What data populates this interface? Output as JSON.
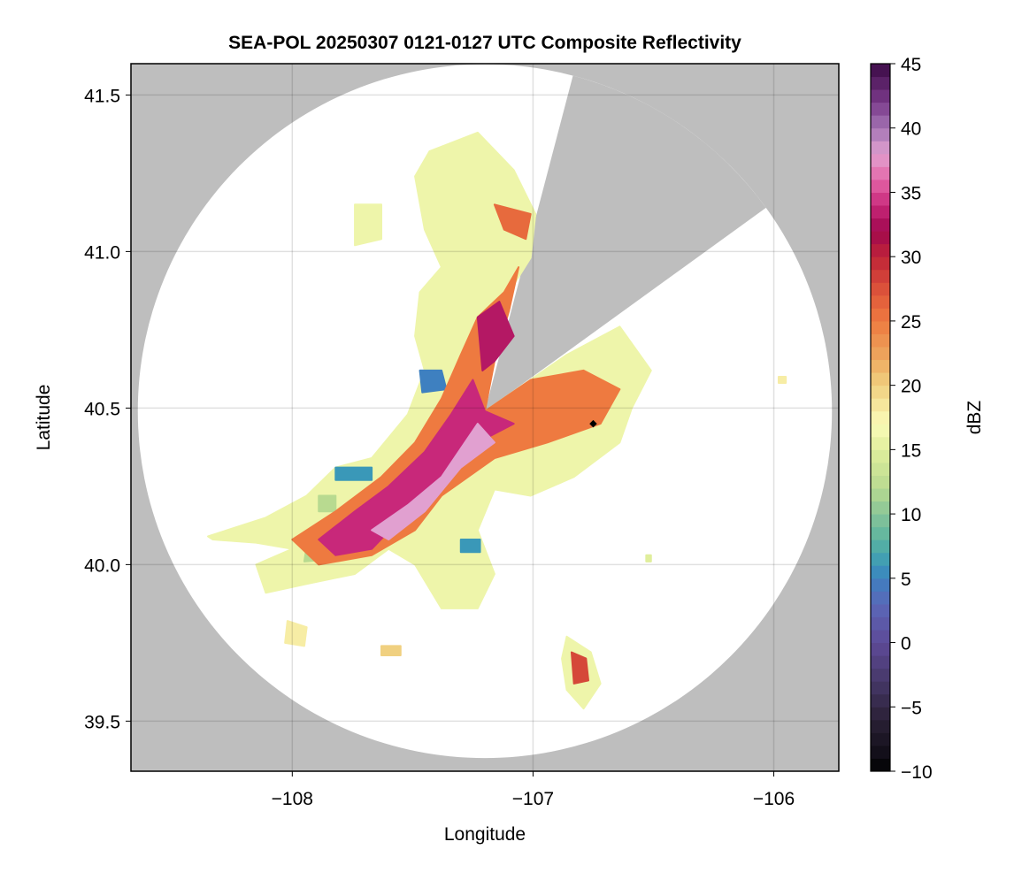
{
  "chart_data": {
    "type": "heatmap",
    "title": "SEA-POL 20250307 0121-0127 UTC Composite Reflectivity",
    "xlabel": "Longitude",
    "ylabel": "Latitude",
    "xlim": [
      -108.67,
      -105.73
    ],
    "ylim": [
      39.34,
      41.6
    ],
    "xticks": [
      -108,
      -107,
      -106
    ],
    "xtick_labels": [
      "−108",
      "−107",
      "−106"
    ],
    "yticks": [
      39.5,
      40.0,
      40.5,
      41.0,
      41.5
    ],
    "ytick_labels": [
      "39.5",
      "40.0",
      "40.5",
      "41.0",
      "41.5"
    ],
    "grid": true,
    "colorbar": {
      "label": "dBZ",
      "range": [
        -10,
        45
      ],
      "ticks": [
        -10,
        -5,
        0,
        5,
        10,
        15,
        20,
        25,
        30,
        35,
        40,
        45
      ],
      "tick_labels": [
        "−10",
        "−5",
        "0",
        "5",
        "10",
        "15",
        "20",
        "25",
        "30",
        "35",
        "40",
        "45"
      ],
      "colormap_anchors": [
        [
          -10,
          "#000000"
        ],
        [
          -9,
          "#0e0c14"
        ],
        [
          -6,
          "#2a2036"
        ],
        [
          -3,
          "#463868"
        ],
        [
          0,
          "#5e4a98"
        ],
        [
          3,
          "#5a68b8"
        ],
        [
          5,
          "#3e80c0"
        ],
        [
          6,
          "#3a98b8"
        ],
        [
          8,
          "#5ab4a0"
        ],
        [
          10,
          "#88c498"
        ],
        [
          12,
          "#b8da90"
        ],
        [
          15,
          "#e0ee9c"
        ],
        [
          17,
          "#fbfbb8"
        ],
        [
          20,
          "#f0d080"
        ],
        [
          22,
          "#eeaa60"
        ],
        [
          25,
          "#ee7a40"
        ],
        [
          27,
          "#e05a3a"
        ],
        [
          30,
          "#c02438"
        ],
        [
          32,
          "#a0084e"
        ],
        [
          34,
          "#c8287a"
        ],
        [
          36,
          "#e466a8"
        ],
        [
          38,
          "#e1a0d0"
        ],
        [
          40,
          "#a474b4"
        ],
        [
          42,
          "#7b3a8a"
        ],
        [
          45,
          "#3b0a45"
        ]
      ]
    },
    "radar": {
      "center": [
        -107.2,
        40.49
      ],
      "range_km": 123,
      "blocked_sector_azimuth_deg": [
        14.7,
        54.1
      ],
      "marker": [
        -106.75,
        40.45
      ]
    },
    "echo_cells": [
      {
        "dbz": 16,
        "poly": [
          [
            -108.35,
            40.09
          ],
          [
            -108.11,
            40.15
          ],
          [
            -107.94,
            40.22
          ],
          [
            -107.82,
            40.31
          ],
          [
            -107.67,
            40.34
          ],
          [
            -107.52,
            40.48
          ],
          [
            -107.45,
            40.62
          ],
          [
            -107.49,
            40.73
          ],
          [
            -107.47,
            40.87
          ],
          [
            -107.38,
            40.95
          ],
          [
            -107.45,
            41.07
          ],
          [
            -107.49,
            41.24
          ],
          [
            -107.43,
            41.32
          ],
          [
            -107.23,
            41.38
          ],
          [
            -107.08,
            41.26
          ],
          [
            -106.99,
            41.12
          ],
          [
            -107.01,
            40.98
          ],
          [
            -107.1,
            40.87
          ],
          [
            -107.16,
            40.7
          ],
          [
            -107.2,
            40.49
          ],
          [
            -106.86,
            40.67
          ],
          [
            -106.64,
            40.76
          ],
          [
            -106.51,
            40.62
          ],
          [
            -106.59,
            40.5
          ],
          [
            -106.64,
            40.39
          ],
          [
            -106.83,
            40.28
          ],
          [
            -107.01,
            40.22
          ],
          [
            -107.16,
            40.24
          ],
          [
            -107.23,
            40.11
          ],
          [
            -107.16,
            39.97
          ],
          [
            -107.23,
            39.86
          ],
          [
            -107.38,
            39.86
          ],
          [
            -107.49,
            40.0
          ],
          [
            -107.6,
            40.05
          ],
          [
            -107.74,
            39.97
          ],
          [
            -107.93,
            39.94
          ],
          [
            -108.11,
            39.91
          ],
          [
            -108.15,
            40.0
          ],
          [
            -108.0,
            40.05
          ],
          [
            -108.15,
            40.07
          ],
          [
            -108.33,
            40.08
          ]
        ]
      },
      {
        "dbz": 12,
        "poly": [
          [
            -107.94,
            40.06
          ],
          [
            -107.82,
            40.05
          ],
          [
            -107.8,
            40.02
          ],
          [
            -107.95,
            40.01
          ]
        ]
      },
      {
        "dbz": 12,
        "poly": [
          [
            -107.89,
            40.22
          ],
          [
            -107.82,
            40.22
          ],
          [
            -107.82,
            40.17
          ],
          [
            -107.89,
            40.17
          ]
        ]
      },
      {
        "dbz": 6,
        "poly": [
          [
            -107.82,
            40.31
          ],
          [
            -107.67,
            40.31
          ],
          [
            -107.67,
            40.27
          ],
          [
            -107.82,
            40.27
          ]
        ]
      },
      {
        "dbz": 5,
        "poly": [
          [
            -107.47,
            40.62
          ],
          [
            -107.38,
            40.62
          ],
          [
            -107.36,
            40.56
          ],
          [
            -107.46,
            40.55
          ]
        ]
      },
      {
        "dbz": 6,
        "poly": [
          [
            -107.3,
            40.08
          ],
          [
            -107.22,
            40.08
          ],
          [
            -107.22,
            40.04
          ],
          [
            -107.3,
            40.04
          ]
        ]
      },
      {
        "dbz": 25,
        "poly": [
          [
            -108.0,
            40.08
          ],
          [
            -107.82,
            40.17
          ],
          [
            -107.63,
            40.28
          ],
          [
            -107.49,
            40.39
          ],
          [
            -107.38,
            40.53
          ],
          [
            -107.3,
            40.67
          ],
          [
            -107.23,
            40.79
          ],
          [
            -107.12,
            40.87
          ],
          [
            -107.06,
            40.95
          ],
          [
            -107.1,
            40.81
          ],
          [
            -107.16,
            40.65
          ],
          [
            -107.2,
            40.49
          ],
          [
            -107.01,
            40.59
          ],
          [
            -106.79,
            40.62
          ],
          [
            -106.64,
            40.56
          ],
          [
            -106.72,
            40.45
          ],
          [
            -106.94,
            40.39
          ],
          [
            -107.16,
            40.34
          ],
          [
            -107.38,
            40.22
          ],
          [
            -107.49,
            40.11
          ],
          [
            -107.67,
            40.03
          ],
          [
            -107.89,
            40.0
          ]
        ]
      },
      {
        "dbz": 26,
        "poly": [
          [
            -107.16,
            41.15
          ],
          [
            -107.01,
            41.12
          ],
          [
            -107.03,
            41.04
          ],
          [
            -107.12,
            41.07
          ]
        ]
      },
      {
        "dbz": 34,
        "poly": [
          [
            -107.89,
            40.08
          ],
          [
            -107.74,
            40.17
          ],
          [
            -107.6,
            40.25
          ],
          [
            -107.45,
            40.36
          ],
          [
            -107.34,
            40.48
          ],
          [
            -107.25,
            40.59
          ],
          [
            -107.2,
            40.49
          ],
          [
            -107.08,
            40.45
          ],
          [
            -107.23,
            40.39
          ],
          [
            -107.38,
            40.28
          ],
          [
            -107.52,
            40.17
          ],
          [
            -107.67,
            40.05
          ],
          [
            -107.82,
            40.03
          ]
        ]
      },
      {
        "dbz": 33,
        "poly": [
          [
            -107.23,
            40.79
          ],
          [
            -107.14,
            40.84
          ],
          [
            -107.08,
            40.73
          ],
          [
            -107.16,
            40.65
          ],
          [
            -107.21,
            40.62
          ]
        ]
      },
      {
        "dbz": 38,
        "poly": [
          [
            -107.67,
            40.11
          ],
          [
            -107.52,
            40.19
          ],
          [
            -107.38,
            40.28
          ],
          [
            -107.23,
            40.45
          ],
          [
            -107.16,
            40.39
          ],
          [
            -107.3,
            40.31
          ],
          [
            -107.45,
            40.17
          ],
          [
            -107.6,
            40.08
          ]
        ]
      },
      {
        "dbz": 16,
        "poly": [
          [
            -107.74,
            41.15
          ],
          [
            -107.63,
            41.15
          ],
          [
            -107.63,
            41.04
          ],
          [
            -107.74,
            41.02
          ]
        ]
      },
      {
        "dbz": 16,
        "poly": [
          [
            -106.86,
            39.77
          ],
          [
            -106.76,
            39.72
          ],
          [
            -106.72,
            39.62
          ],
          [
            -106.79,
            39.54
          ],
          [
            -106.86,
            39.6
          ],
          [
            -106.88,
            39.7
          ]
        ]
      },
      {
        "dbz": 28,
        "poly": [
          [
            -106.84,
            39.72
          ],
          [
            -106.78,
            39.7
          ],
          [
            -106.77,
            39.63
          ],
          [
            -106.83,
            39.62
          ]
        ]
      },
      {
        "dbz": 18,
        "poly": [
          [
            -108.02,
            39.82
          ],
          [
            -107.94,
            39.8
          ],
          [
            -107.95,
            39.74
          ],
          [
            -108.03,
            39.75
          ]
        ]
      },
      {
        "dbz": 20,
        "poly": [
          [
            -107.63,
            39.74
          ],
          [
            -107.55,
            39.74
          ],
          [
            -107.55,
            39.71
          ],
          [
            -107.63,
            39.71
          ]
        ]
      },
      {
        "dbz": 18,
        "poly": [
          [
            -105.98,
            40.6
          ],
          [
            -105.95,
            40.6
          ],
          [
            -105.95,
            40.58
          ],
          [
            -105.98,
            40.58
          ]
        ]
      },
      {
        "dbz": 15,
        "poly": [
          [
            -106.53,
            40.03
          ],
          [
            -106.51,
            40.03
          ],
          [
            -106.51,
            40.01
          ],
          [
            -106.53,
            40.01
          ]
        ]
      }
    ]
  }
}
